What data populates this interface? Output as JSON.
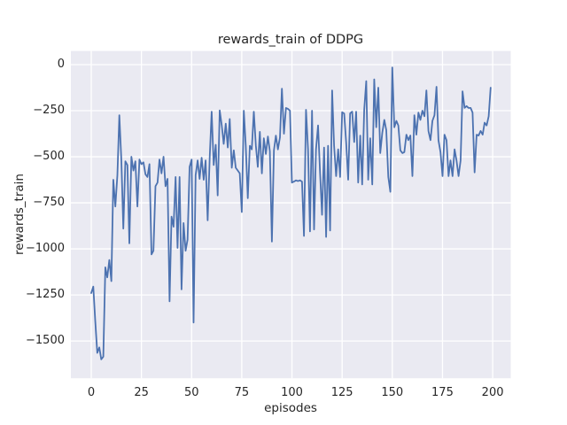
{
  "chart_data": {
    "type": "line",
    "title": "rewards_train of DDPG",
    "xlabel": "episodes",
    "ylabel": "rewards_train",
    "grid": true,
    "legend_position": "none",
    "xlim": [
      -11,
      210
    ],
    "ylim": [
      -1690,
      65
    ],
    "xticks": {
      "values": [
        0,
        25,
        50,
        75,
        100,
        125,
        150,
        175,
        200
      ],
      "labels": [
        "0",
        "25",
        "50",
        "75",
        "100",
        "125",
        "150",
        "175",
        "200"
      ]
    },
    "yticks": {
      "values": [
        0,
        -250,
        -500,
        -750,
        -1000,
        -1250,
        -1500
      ],
      "labels": [
        "0",
        "−250",
        "−500",
        "−750",
        "−1000",
        "−1250",
        "−1500"
      ]
    },
    "colors": {
      "figure_background": "#FFFFFF",
      "axes_background": "#EAEAF2",
      "grid": "#FFFFFF",
      "line": "#4C72B0",
      "text": "#262626"
    },
    "series": [
      {
        "name": "rewards_train",
        "x_start": 0,
        "x_step": 1,
        "values": [
          -1240,
          -1205,
          -1390,
          -1565,
          -1535,
          -1600,
          -1585,
          -1100,
          -1155,
          -1060,
          -1175,
          -625,
          -770,
          -600,
          -275,
          -520,
          -890,
          -525,
          -545,
          -970,
          -500,
          -575,
          -525,
          -770,
          -515,
          -540,
          -530,
          -595,
          -610,
          -540,
          -1030,
          -1010,
          -660,
          -640,
          -515,
          -590,
          -500,
          -660,
          -620,
          -1285,
          -825,
          -880,
          -610,
          -995,
          -610,
          -1220,
          -860,
          -1010,
          -950,
          -555,
          -515,
          -1400,
          -600,
          -520,
          -620,
          -505,
          -625,
          -520,
          -845,
          -505,
          -255,
          -545,
          -435,
          -710,
          -248,
          -330,
          -430,
          -320,
          -450,
          -295,
          -560,
          -465,
          -560,
          -575,
          -590,
          -800,
          -250,
          -440,
          -725,
          -440,
          -460,
          -255,
          -440,
          -555,
          -365,
          -590,
          -400,
          -485,
          -390,
          -470,
          -960,
          -465,
          -385,
          -460,
          -395,
          -130,
          -375,
          -235,
          -240,
          -250,
          -640,
          -635,
          -628,
          -632,
          -628,
          -635,
          -930,
          -245,
          -460,
          -905,
          -250,
          -895,
          -460,
          -330,
          -590,
          -815,
          -450,
          -935,
          -440,
          -900,
          -140,
          -440,
          -605,
          -460,
          -610,
          -258,
          -266,
          -420,
          -625,
          -265,
          -255,
          -420,
          -255,
          -640,
          -385,
          -650,
          -245,
          -90,
          -625,
          -400,
          -650,
          -80,
          -340,
          -125,
          -480,
          -370,
          -300,
          -355,
          -610,
          -690,
          -15,
          -340,
          -305,
          -330,
          -465,
          -480,
          -475,
          -380,
          -410,
          -385,
          -605,
          -275,
          -380,
          -260,
          -300,
          -250,
          -280,
          -140,
          -360,
          -410,
          -305,
          -275,
          -120,
          -410,
          -475,
          -605,
          -380,
          -410,
          -605,
          -520,
          -605,
          -460,
          -520,
          -605,
          -520,
          -145,
          -235,
          -225,
          -235,
          -235,
          -260,
          -585,
          -380,
          -385,
          -360,
          -380,
          -315,
          -330,
          -280,
          -125
        ]
      }
    ]
  }
}
